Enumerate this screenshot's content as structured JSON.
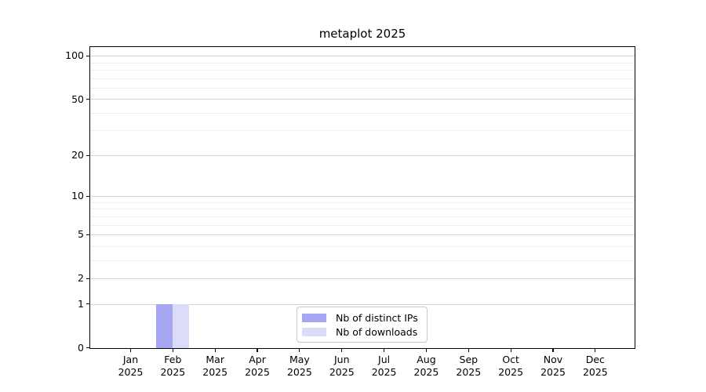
{
  "chart_data": {
    "type": "bar",
    "title": "metaplot 2025",
    "x_tick_months": [
      "Jan",
      "Feb",
      "Mar",
      "Apr",
      "May",
      "Jun",
      "Jul",
      "Aug",
      "Sep",
      "Oct",
      "Nov",
      "Dec"
    ],
    "x_tick_year": "2025",
    "series": [
      {
        "name": "Nb of distinct IPs",
        "color": "#a6a6f2",
        "values": [
          0,
          1,
          0,
          0,
          0,
          0,
          0,
          0,
          0,
          0,
          0,
          0
        ]
      },
      {
        "name": "Nb of downloads",
        "color": "#dcdcf8",
        "values": [
          0,
          1,
          0,
          0,
          0,
          0,
          0,
          0,
          0,
          0,
          0,
          0
        ]
      }
    ],
    "y_axis": {
      "scale": "log1p",
      "major_ticks": [
        0,
        1,
        2,
        5,
        10,
        20,
        50,
        100
      ],
      "minor_ticks": [
        3,
        4,
        6,
        7,
        8,
        9,
        30,
        40,
        60,
        70,
        80,
        90
      ],
      "max": 115
    },
    "legend_position": "bottom-center",
    "grid": "horizontal-only",
    "colors": {
      "major_grid": "#d4d4d4",
      "minor_grid": "#efefef",
      "axis": "#000000",
      "legend_border": "#c9c9c9",
      "background": "#ffffff"
    }
  }
}
